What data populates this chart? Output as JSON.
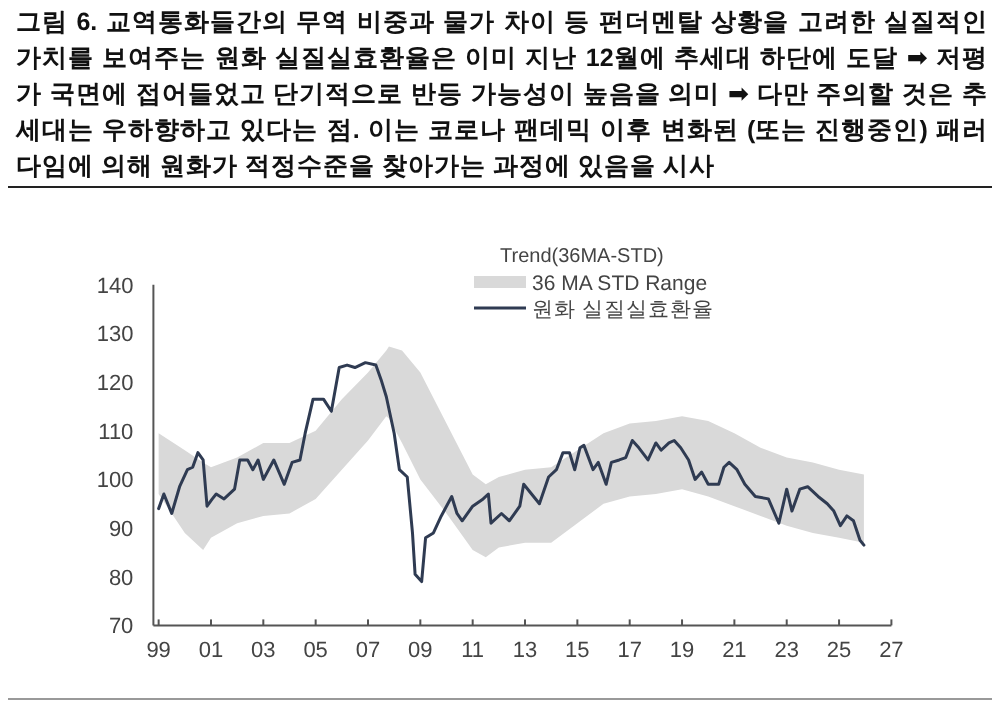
{
  "chart_data": {
    "type": "line",
    "title": "그림 6.  교역통화들간의 무역 비중과 물가 차이 등 펀더멘탈 상황을 고려한 실질적인 가치를 보여주는 원화 실질실효환율은 이미 지난 12월에 추세대 하단에 도달 ➡ 저평가 국면에 접어들었고 단기적으로 반등 가능성이 높음을 의미 ➡ 다만 주의할 것은 추세대는 우하향하고 있다는 점. 이는 코로나 팬데믹 이후 변화된 (또는 진행중인) 패러다임에 의해 원화가 적정수준을 찾아가는 과정에 있음을 시사",
    "legend_title": "Trend(36MA-STD)",
    "legend": "top",
    "xlim": [
      1998.8,
      2027
    ],
    "xticks": [
      {
        "value": 1999,
        "label": "99"
      },
      {
        "value": 2001,
        "label": "01"
      },
      {
        "value": 2003,
        "label": "03"
      },
      {
        "value": 2005,
        "label": "05"
      },
      {
        "value": 2007,
        "label": "07"
      },
      {
        "value": 2009,
        "label": "09"
      },
      {
        "value": 2011,
        "label": "11"
      },
      {
        "value": 2013,
        "label": "13"
      },
      {
        "value": 2015,
        "label": "15"
      },
      {
        "value": 2017,
        "label": "17"
      },
      {
        "value": 2019,
        "label": "19"
      },
      {
        "value": 2021,
        "label": "21"
      },
      {
        "value": 2023,
        "label": "23"
      },
      {
        "value": 2025,
        "label": "25"
      },
      {
        "value": 2027,
        "label": "27"
      }
    ],
    "ylim": [
      70,
      140
    ],
    "yticks": [
      70,
      80,
      90,
      100,
      110,
      120,
      130,
      140
    ],
    "series": [
      {
        "name": "36 MA STD Range",
        "type": "area",
        "color": "#d9d9d9",
        "x": [
          1999,
          2000,
          2000.7,
          2001,
          2002,
          2003,
          2004,
          2005,
          2006,
          2007,
          2007.7,
          2007.8,
          2008.3,
          2009,
          2010,
          2011,
          2011.5,
          2012,
          2013,
          2014,
          2015,
          2016,
          2017,
          2018,
          2019,
          2020,
          2021,
          2022,
          2023,
          2024,
          2025,
          2025.95
        ],
        "lower": [
          97,
          89,
          85.5,
          88,
          91,
          92.5,
          93,
          96,
          102,
          108,
          113,
          112.5,
          107.5,
          100,
          93,
          85.5,
          84,
          86,
          87,
          87,
          91,
          95,
          96.5,
          97,
          98,
          96.5,
          94.5,
          92.5,
          90.5,
          89,
          88,
          87
        ],
        "values": [
          null,
          null,
          null,
          null,
          null,
          null,
          null,
          null,
          null,
          null,
          null,
          null,
          null,
          null,
          null,
          null,
          null,
          null,
          null,
          null,
          null,
          null,
          null,
          null,
          null,
          null,
          null,
          null,
          null,
          null,
          null,
          null
        ],
        "upper": [
          109.5,
          106,
          103.5,
          102.5,
          104.5,
          107.5,
          107.5,
          110,
          116.5,
          122,
          126.5,
          127.3,
          126.5,
          122,
          111.5,
          101,
          99,
          100.5,
          102,
          102.5,
          106,
          109.5,
          111.5,
          112,
          113,
          112,
          109.5,
          106.5,
          104.5,
          103.5,
          102,
          101
        ]
      },
      {
        "name": "원화 실질실효환율",
        "color": "#2f3b52",
        "x": [
          1999,
          1999.2,
          1999.5,
          1999.8,
          2000.1,
          2000.3,
          2000.5,
          2000.7,
          2000.85,
          2001.05,
          2001.2,
          2001.5,
          2001.9,
          2002.1,
          2002.4,
          2002.6,
          2002.8,
          2003,
          2003.4,
          2003.8,
          2004.1,
          2004.4,
          2004.6,
          2004.9,
          2005.3,
          2005.6,
          2005.9,
          2006.2,
          2006.5,
          2006.9,
          2007.3,
          2007.5,
          2007.7,
          2008,
          2008.2,
          2008.5,
          2008.7,
          2008.8,
          2009.05,
          2009.2,
          2009.5,
          2009.8,
          2010.2,
          2010.4,
          2010.6,
          2011,
          2011.4,
          2011.6,
          2011.7,
          2012.1,
          2012.4,
          2012.8,
          2012.95,
          2013.55,
          2013.9,
          2014.2,
          2014.45,
          2014.7,
          2014.9,
          2015.1,
          2015.25,
          2015.6,
          2015.8,
          2016.1,
          2016.3,
          2016.6,
          2016.85,
          2017.1,
          2017.35,
          2017.7,
          2018,
          2018.2,
          2018.5,
          2018.7,
          2018.95,
          2019.25,
          2019.5,
          2019.75,
          2020,
          2020.4,
          2020.6,
          2020.8,
          2021.1,
          2021.4,
          2021.8,
          2022.3,
          2022.7,
          2023,
          2023.2,
          2023.5,
          2023.8,
          2024.2,
          2024.55,
          2024.8,
          2025.05,
          2025.3,
          2025.55,
          2025.8,
          2025.95
        ],
        "values": [
          94,
          97,
          93,
          98.5,
          102,
          102.5,
          105.5,
          104,
          94.5,
          96,
          97,
          96,
          98,
          104,
          104,
          102,
          104,
          100,
          104,
          99,
          103.5,
          104,
          109.5,
          116.5,
          116.5,
          114,
          123,
          123.5,
          123,
          124,
          123.5,
          120.5,
          117,
          109.5,
          102,
          100.5,
          89,
          80.5,
          79,
          88,
          89,
          92.5,
          96.5,
          93,
          91.5,
          94.5,
          96,
          97,
          91,
          93,
          91.5,
          94.5,
          99,
          95,
          100.5,
          102,
          105.5,
          105.5,
          102,
          106.5,
          107,
          102,
          103.5,
          99,
          103.5,
          104,
          104.5,
          108,
          106.5,
          104,
          107.5,
          106,
          107.5,
          108,
          106.5,
          104,
          100,
          101.5,
          99,
          99,
          102.5,
          103.5,
          102,
          99,
          96.5,
          96,
          91,
          98,
          93.5,
          98,
          98.5,
          96.5,
          95,
          93.5,
          90.5,
          92.5,
          91.5,
          87.5,
          86.5
        ]
      }
    ]
  }
}
